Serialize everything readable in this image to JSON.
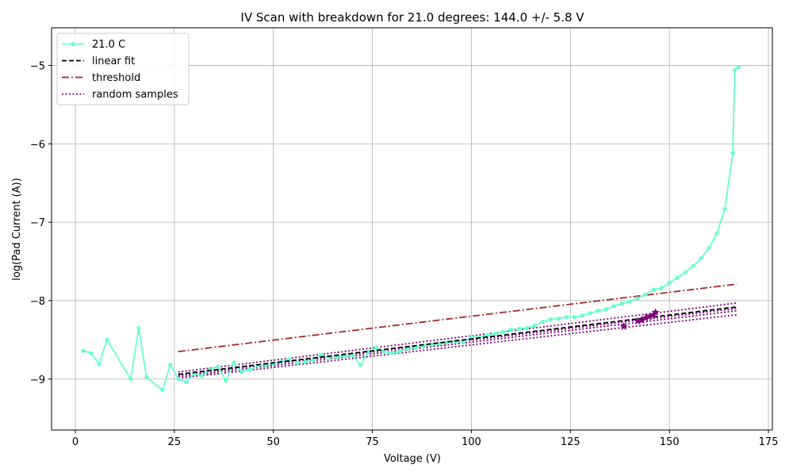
{
  "chart_data": {
    "type": "line",
    "title": "IV Scan with breakdown for 21.0 degrees: 144.0 +/- 5.8 V",
    "xlabel": "Voltage (V)",
    "ylabel": "log(Pad Current (A))",
    "xlim": [
      -6,
      176
    ],
    "ylim": [
      -9.65,
      -4.52
    ],
    "grid": true,
    "legend_position": "top-left",
    "x_ticks": [
      0,
      25,
      50,
      75,
      100,
      125,
      150,
      175
    ],
    "y_ticks": [
      -9,
      -8,
      -7,
      -6,
      -5
    ],
    "x_tick_labels": [
      "0",
      "25",
      "50",
      "75",
      "100",
      "125",
      "150",
      "175"
    ],
    "y_tick_labels": [
      "−9",
      "−8",
      "−7",
      "−6",
      "−5"
    ],
    "series": [
      {
        "name": "21.0 C",
        "color": "#66ffcc",
        "style": "solid-marker",
        "x": [
          2,
          4,
          6,
          8,
          14,
          16,
          18,
          22,
          24,
          26,
          28,
          30,
          32,
          34,
          36,
          38,
          40,
          42,
          44,
          46,
          48,
          50,
          52,
          54,
          56,
          58,
          60,
          62,
          64,
          66,
          68,
          70,
          72,
          74,
          76,
          78,
          80,
          82,
          84,
          86,
          88,
          90,
          92,
          94,
          96,
          98,
          100,
          102,
          104,
          106,
          108,
          110,
          112,
          114,
          116,
          118,
          120,
          122,
          124,
          126,
          128,
          130,
          132,
          134,
          136,
          138,
          140,
          142,
          144,
          146,
          148,
          150,
          152,
          154,
          156,
          158,
          160,
          162,
          164,
          166,
          166.5,
          167.5
        ],
        "y": [
          -8.64,
          -8.67,
          -8.81,
          -8.5,
          -9.0,
          -8.35,
          -8.98,
          -9.14,
          -8.82,
          -9.0,
          -9.04,
          -8.93,
          -8.96,
          -8.88,
          -8.84,
          -9.02,
          -8.79,
          -8.91,
          -8.88,
          -8.83,
          -8.82,
          -8.8,
          -8.78,
          -8.75,
          -8.79,
          -8.78,
          -8.76,
          -8.69,
          -8.73,
          -8.72,
          -8.71,
          -8.7,
          -8.82,
          -8.65,
          -8.6,
          -8.65,
          -8.67,
          -8.65,
          -8.61,
          -8.6,
          -8.58,
          -8.56,
          -8.55,
          -8.53,
          -8.52,
          -8.53,
          -8.46,
          -8.47,
          -8.44,
          -8.42,
          -8.4,
          -8.37,
          -8.36,
          -8.35,
          -8.32,
          -8.27,
          -8.24,
          -8.23,
          -8.21,
          -8.21,
          -8.19,
          -8.16,
          -8.13,
          -8.11,
          -8.07,
          -8.04,
          -8.01,
          -7.97,
          -7.92,
          -7.86,
          -7.84,
          -7.77,
          -7.71,
          -7.64,
          -7.56,
          -7.46,
          -7.33,
          -7.14,
          -6.83,
          -6.12,
          -5.06,
          -5.02
        ]
      },
      {
        "name": "linear fit",
        "color": "#000000",
        "style": "dashed",
        "x": [
          26,
          167
        ],
        "y": [
          -8.94,
          -8.08
        ]
      },
      {
        "name": "threshold",
        "color": "#a52a2a",
        "style": "dashdot",
        "x": [
          26,
          167
        ],
        "y": [
          -8.65,
          -7.79
        ]
      },
      {
        "name": "random samples",
        "color": "#800080",
        "style": "dotted",
        "lines": [
          {
            "x": [
              26,
              167
            ],
            "y": [
              -8.91,
              -8.03
            ]
          },
          {
            "x": [
              26,
              167
            ],
            "y": [
              -8.95,
              -8.1
            ]
          },
          {
            "x": [
              26,
              167
            ],
            "y": [
              -8.97,
              -8.13
            ]
          },
          {
            "x": [
              26,
              167
            ],
            "y": [
              -8.99,
              -8.18
            ]
          }
        ]
      }
    ],
    "breakdown_markers": {
      "color": "#800080",
      "x": [
        138.5,
        142,
        143,
        144,
        145,
        146,
        146.5
      ],
      "y": [
        -8.33,
        -8.26,
        -8.25,
        -8.22,
        -8.2,
        -8.18,
        -8.15
      ]
    }
  }
}
